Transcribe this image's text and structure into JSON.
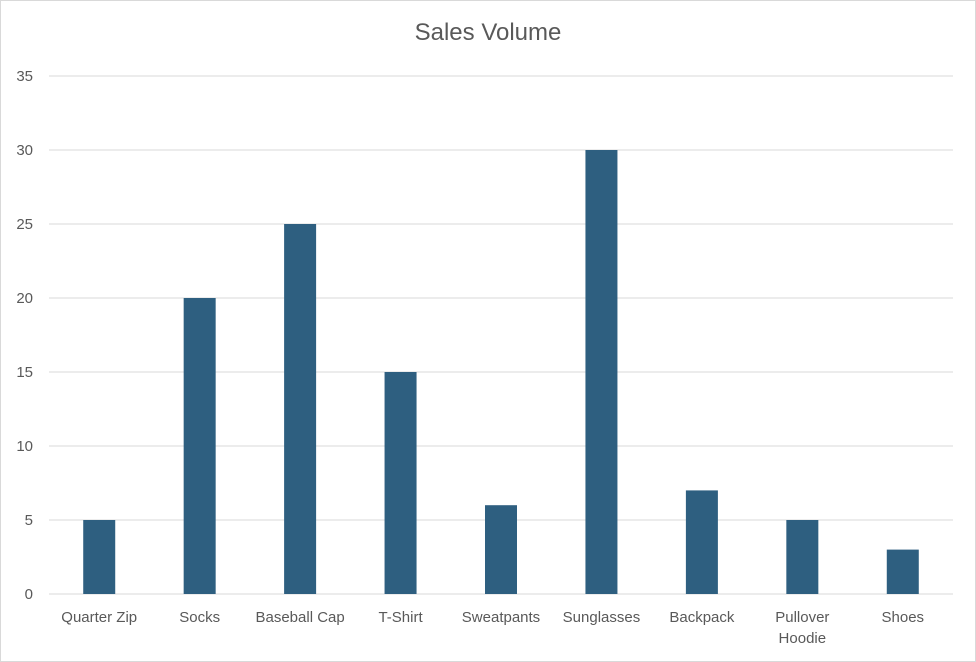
{
  "chart_data": {
    "type": "bar",
    "title": "Sales Volume",
    "categories": [
      "Quarter Zip",
      "Socks",
      "Baseball Cap",
      "T-Shirt",
      "Sweatpants",
      "Sunglasses",
      "Backpack",
      "Pullover Hoodie",
      "Shoes"
    ],
    "values": [
      5,
      20,
      25,
      15,
      6,
      30,
      7,
      5,
      3
    ],
    "ylim": [
      0,
      35
    ],
    "yticks": [
      0,
      5,
      10,
      15,
      20,
      25,
      30,
      35
    ],
    "xlabel": "",
    "ylabel": "",
    "grid": true,
    "legend": "none",
    "bar_color": "#2e5f80"
  }
}
